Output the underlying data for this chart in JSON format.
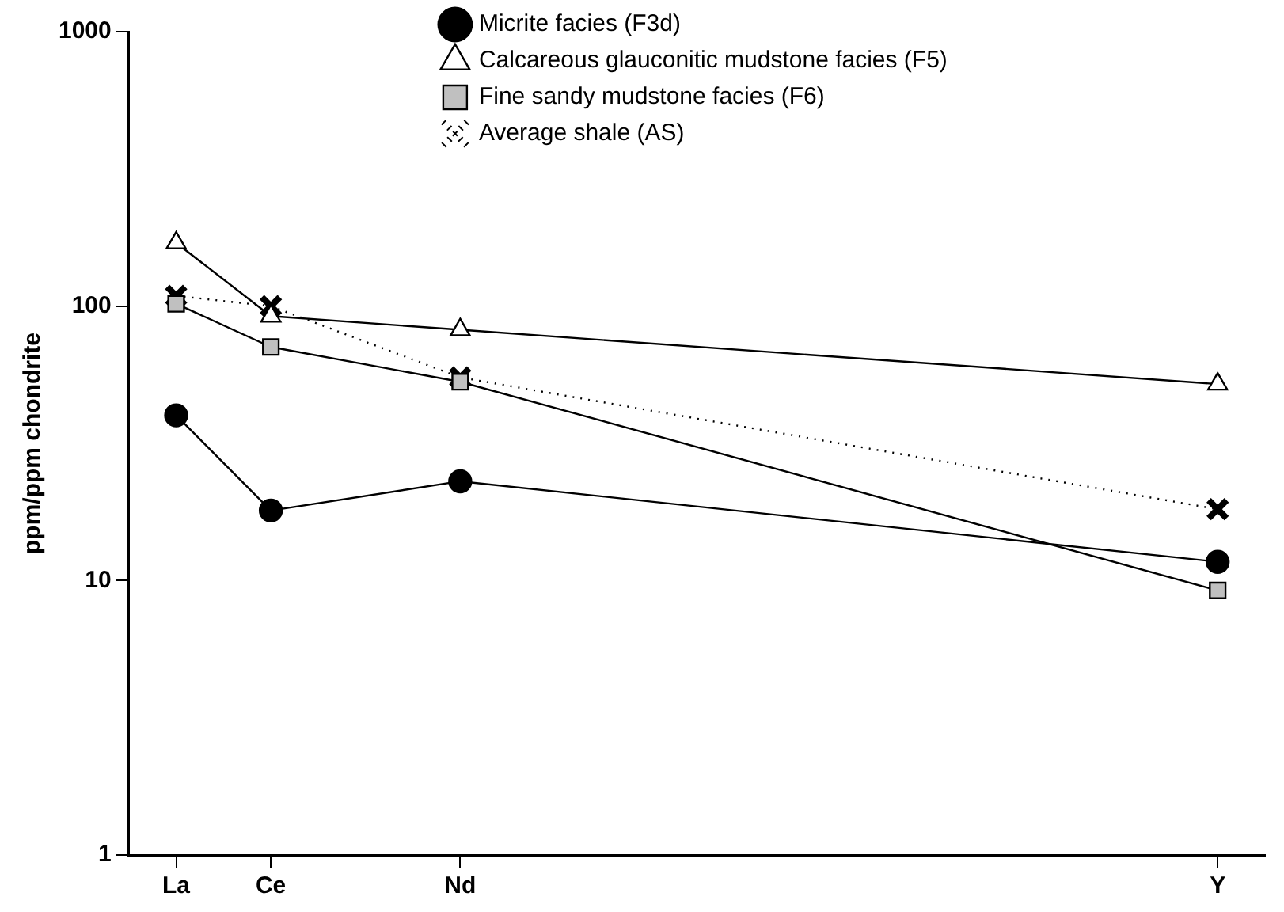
{
  "chart_data": {
    "type": "line",
    "ylabel": "ppm/ppm chondrite",
    "log": "y",
    "grid": false,
    "legend": "top",
    "categories": [
      "La",
      "Ce",
      null,
      "Nd",
      null,
      null,
      null,
      null,
      null,
      null,
      null,
      "Y"
    ],
    "ylim": [
      1,
      1000
    ],
    "yticks": [
      1,
      10,
      100,
      1000
    ],
    "series": [
      {
        "name": "Micrite facies (F3d)",
        "color": "#000000",
        "marker": "circle",
        "line_style": "solid",
        "values": [
          40,
          18,
          null,
          23,
          null,
          null,
          null,
          null,
          null,
          null,
          null,
          11.7
        ]
      },
      {
        "name": "Calcareous glauconitic mudstone facies (F5)",
        "color": "#ffffff",
        "marker": "triangle",
        "line_style": "solid",
        "values": [
          170,
          92,
          null,
          82,
          null,
          null,
          null,
          null,
          null,
          null,
          null,
          52
        ]
      },
      {
        "name": "Fine sandy mudstone facies (F6)",
        "color": "#c0c0c0",
        "marker": "square",
        "line_style": "solid",
        "values": [
          102,
          71,
          null,
          53,
          null,
          null,
          null,
          null,
          null,
          null,
          null,
          9.2
        ]
      },
      {
        "name": "Average shale (AS)",
        "color": "#000000",
        "marker": "cross",
        "line_style": "dotted",
        "values": [
          109,
          100,
          null,
          55,
          null,
          null,
          null,
          null,
          null,
          null,
          null,
          18.2
        ]
      }
    ]
  }
}
